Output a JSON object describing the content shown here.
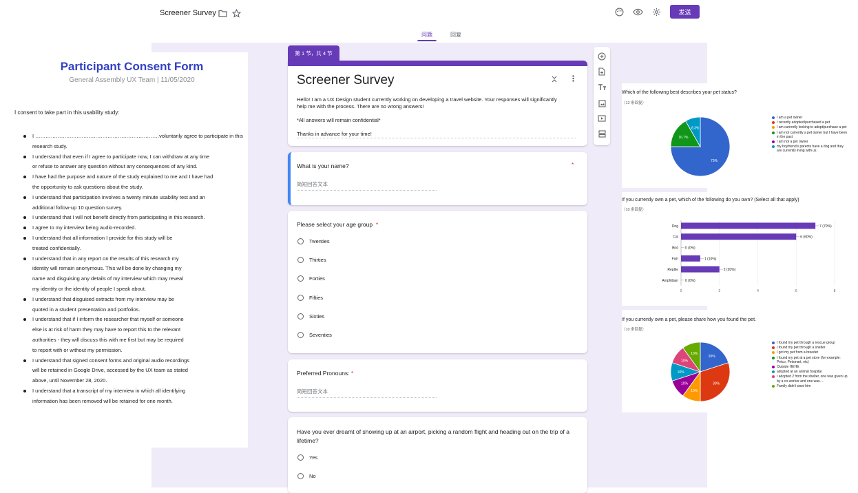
{
  "header": {
    "doc_title": "Screener Survey",
    "send_label": "发送",
    "tabs": [
      {
        "label": "问题"
      },
      {
        "label": "回复"
      }
    ],
    "icons": [
      "folder-icon",
      "star-icon",
      "palette-icon",
      "eye-icon",
      "gear-icon"
    ]
  },
  "consent": {
    "title": "Participant Consent Form",
    "subtitle": "General Assembly UX Team | 11/05/2020",
    "intro": "I consent to take part in this usability study:",
    "lines": [
      {
        "text": "I ………………………………………………………………voluntarily agree to participate in this",
        "bullet": true
      },
      {
        "text": "research study.",
        "bullet": false
      },
      {
        "text": "I understand that even if I agree to participate now, I can withdraw at any time",
        "bullet": true
      },
      {
        "text": "or  refuse to answer any question without any consequences of any kind.",
        "bullet": false
      },
      {
        "text": "I have had the purpose and nature of the study explained to me and I have had",
        "bullet": true
      },
      {
        "text": "the  opportunity to ask questions about the study.",
        "bullet": false
      },
      {
        "text": "I understand that participation involves a twenty minute usability test and an",
        "bullet": true
      },
      {
        "text": "additional follow-up 10 question survey.",
        "bullet": false
      },
      {
        "text": "I understand that I will not benefit directly from participating in this research.",
        "bullet": true
      },
      {
        "text": "I agree to my interview being audio-recorded.",
        "bullet": true
      },
      {
        "text": " I understand that all information I provide for this study will be",
        "bullet": true
      },
      {
        "text": "treated confidentially.",
        "bullet": false
      },
      {
        "text": "I understand that in any report on the results of this research my",
        "bullet": true
      },
      {
        "text": "identity will remain  anonymous. This will be done by changing my",
        "bullet": false
      },
      {
        "text": "name and disguising any details of my  interview which may reveal",
        "bullet": false
      },
      {
        "text": "my identity or the identity of people I speak about.",
        "bullet": false
      },
      {
        "text": "I understand that disguised extracts from my interview may be",
        "bullet": true
      },
      {
        "text": "quoted in a student  presentation and portfolios.",
        "bullet": false
      },
      {
        "text": "I understand that if I inform the researcher that myself or someone",
        "bullet": true
      },
      {
        "text": "else is at risk of  harm they may have to report this to the relevant",
        "bullet": false
      },
      {
        "text": "authorities - they will discuss this  with me first but may be required",
        "bullet": false
      },
      {
        "text": "to report with or without my permission.",
        "bullet": false
      },
      {
        "text": "I understand that signed consent forms and original audio recordings",
        "bullet": true
      },
      {
        "text": "will be retained  in Google Drive, accessed by the UX team as stated",
        "bullet": false
      },
      {
        "text": "above, until November 28, 2020.",
        "bullet": false
      },
      {
        "text": "I understand that a transcript of my interview in which all identifying",
        "bullet": true
      },
      {
        "text": "information has  been removed will be retained for one month.",
        "bullet": false
      }
    ]
  },
  "form": {
    "section_tag": "第 1 节，共 4 节",
    "title": "Screener Survey",
    "desc1": "Hello! I am a UX Design student currently working on developing a travel website. Your responses will significantly help me with the process. There are no wrong answers!",
    "desc2": "*All answers will remain confidential*",
    "desc3": "Thanks in advance for your time!",
    "q1": {
      "text": "What is your name?",
      "required_mark": "*",
      "placeholder": "简短回答文本"
    },
    "q2": {
      "text": "Please select your age group",
      "required_mark": "*",
      "options": [
        "Twenties",
        "Thirties",
        "Forties",
        "Fifties",
        "Sixties",
        "Seventies"
      ]
    },
    "q3": {
      "text": "Preferred Pronouns:",
      "required_mark": "*",
      "placeholder": "简短回答文本"
    },
    "q4": {
      "text": "Have you ever dreamt of showing up at an airport, picking a random flight and heading out on the trip of a lifetime?",
      "options": [
        "Yes",
        "No"
      ]
    }
  },
  "chart_data": [
    {
      "type": "pie",
      "title": "Which of the following best describes your pet status?",
      "subtitle": "（12 条回复）",
      "categories": [
        "I am a pet owner",
        "I recently adopted/purchased a pet",
        "I am currently looking to adopt/purchase a pet",
        "I am not currently a pet owner but I have been in the past",
        "I am not a pet owner",
        "my boyfriend's parents have a dog and they are currently living with us"
      ],
      "values": [
        75,
        0,
        0,
        16.7,
        0,
        8.3
      ],
      "labels": [
        "75%",
        "",
        "",
        "16.7%",
        "",
        "8.3%"
      ],
      "colors": [
        "#3366cc",
        "#dc3912",
        "#ff9900",
        "#109618",
        "#990099",
        "#0099c6"
      ],
      "legend": "right"
    },
    {
      "type": "bar",
      "title": "If you currently own a pet, which of the following do you own? (Select all that apply)",
      "subtitle": "（10 条回复）",
      "categories": [
        "Dog",
        "Cat",
        "Bird",
        "Fish",
        "Reptile",
        "Amphibian"
      ],
      "values": [
        7,
        6,
        0,
        1,
        2,
        0
      ],
      "labels": [
        "7 (70%)",
        "6 (60%)",
        "0 (0%)",
        "1 (10%)",
        "2 (20%)",
        "0 (0%)"
      ],
      "xticks": [
        "0",
        "2",
        "4",
        "6",
        "8"
      ],
      "xlim": [
        0,
        8
      ],
      "color": "#673ab7",
      "orientation": "horizontal"
    },
    {
      "type": "pie",
      "title": "If you currently own a pet, please share how you found the pet.",
      "subtitle": "（10 条回复）",
      "categories": [
        "I found my pet through a rescue group",
        "I found my pet through a shelter",
        "I got my pet from a breeder",
        "I found my pet at a pet store (for example: Petco, Petsmart, etc)",
        "Outside HEHE",
        "adopted at an animal hospital",
        "I adopted 2 from the shelter, one was given up by a co-worker and one was…",
        "Family didn't want him"
      ],
      "values": [
        20,
        30,
        10,
        0,
        10,
        10,
        10,
        10
      ],
      "labels": [
        "20%",
        "30%",
        "10%",
        "",
        "10%",
        "10%",
        "10%",
        "10%"
      ],
      "colors": [
        "#3366cc",
        "#dc3912",
        "#ff9900",
        "#109618",
        "#990099",
        "#0099c6",
        "#dd4477",
        "#66aa00"
      ],
      "legend": "right"
    }
  ]
}
